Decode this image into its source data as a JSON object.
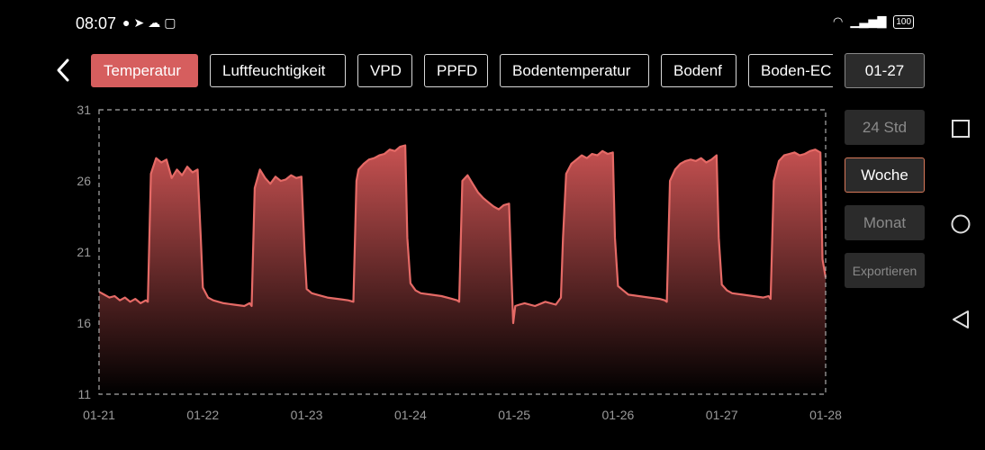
{
  "status_bar": {
    "time": "08:07",
    "battery": "100"
  },
  "tabs": [
    "Temperatur",
    "Luftfeuchtigkeit",
    "VPD",
    "PPFD",
    "Bodentemperatur",
    "Bodenf",
    "Boden-EC"
  ],
  "active_tab": "Temperatur",
  "date_button": "01-27",
  "range_buttons": {
    "day": "24 Std",
    "week": "Woche",
    "month": "Monat",
    "export": "Exportieren"
  },
  "selected_range": "Woche",
  "icons": {
    "back": "chevron-left-icon",
    "square": "recent-apps-icon",
    "circle": "home-icon",
    "triangle": "back-nav-icon"
  },
  "colors": {
    "accent": "#d65e5e",
    "line": "#e56a66",
    "fill_top": "#c85252",
    "fill_bottom": "#000000"
  },
  "chart_data": {
    "type": "area",
    "title": "",
    "xlabel": "",
    "ylabel": "",
    "ylim": [
      11,
      31
    ],
    "yticks": [
      "31",
      "26",
      "21",
      "16",
      "11"
    ],
    "xticks": [
      "01-21",
      "01-22",
      "01-23",
      "01-24",
      "01-25",
      "01-26",
      "01-27",
      "01-28"
    ],
    "xlim": [
      0,
      7
    ],
    "grid": false,
    "border": "dashed",
    "series": [
      {
        "x": [
          0,
          0.05,
          0.1,
          0.15,
          0.2,
          0.25,
          0.3,
          0.35,
          0.4,
          0.45,
          0.47,
          0.5,
          0.55,
          0.6,
          0.65,
          0.7,
          0.75,
          0.8,
          0.85,
          0.9,
          0.95,
          0.98,
          1.0,
          1.05,
          1.1,
          1.2,
          1.3,
          1.4,
          1.45,
          1.47,
          1.5,
          1.55,
          1.6,
          1.65,
          1.7,
          1.75,
          1.8,
          1.85,
          1.9,
          1.95,
          1.98,
          2.0,
          2.05,
          2.1,
          2.2,
          2.3,
          2.4,
          2.45,
          2.48,
          2.5,
          2.55,
          2.6,
          2.65,
          2.7,
          2.75,
          2.8,
          2.85,
          2.9,
          2.95,
          2.97,
          3.0,
          3.05,
          3.1,
          3.2,
          3.3,
          3.4,
          3.45,
          3.47,
          3.5,
          3.55,
          3.6,
          3.65,
          3.7,
          3.75,
          3.8,
          3.85,
          3.9,
          3.95,
          3.97,
          3.99,
          4.01,
          4.05,
          4.1,
          4.2,
          4.3,
          4.4,
          4.45,
          4.47,
          4.5,
          4.55,
          4.6,
          4.65,
          4.7,
          4.75,
          4.8,
          4.85,
          4.9,
          4.95,
          4.97,
          5.0,
          5.05,
          5.1,
          5.2,
          5.3,
          5.4,
          5.45,
          5.47,
          5.5,
          5.55,
          5.6,
          5.65,
          5.7,
          5.75,
          5.8,
          5.85,
          5.9,
          5.95,
          5.97,
          6.0,
          6.05,
          6.1,
          6.2,
          6.3,
          6.4,
          6.45,
          6.47,
          6.5,
          6.55,
          6.6,
          6.65,
          6.7,
          6.75,
          6.8,
          6.85,
          6.9,
          6.95,
          6.97,
          7.0
        ],
        "y": [
          18.2,
          18.0,
          17.8,
          17.9,
          17.6,
          17.8,
          17.5,
          17.7,
          17.4,
          17.6,
          17.5,
          26.5,
          27.6,
          27.3,
          27.5,
          26.2,
          26.8,
          26.4,
          27.0,
          26.6,
          26.8,
          22.0,
          18.5,
          17.8,
          17.6,
          17.4,
          17.3,
          17.2,
          17.4,
          17.2,
          25.5,
          26.8,
          26.2,
          25.8,
          26.3,
          26.0,
          26.1,
          26.4,
          26.2,
          26.3,
          21.0,
          18.4,
          18.1,
          18.0,
          17.8,
          17.7,
          17.6,
          17.5,
          26.0,
          26.8,
          27.2,
          27.5,
          27.6,
          27.8,
          27.9,
          28.2,
          28.1,
          28.4,
          28.5,
          22.0,
          18.8,
          18.3,
          18.1,
          18.0,
          17.9,
          17.7,
          17.6,
          17.5,
          26.0,
          26.4,
          25.8,
          25.2,
          24.8,
          24.5,
          24.2,
          24.0,
          24.3,
          24.4,
          20.0,
          16.0,
          17.2,
          17.3,
          17.4,
          17.2,
          17.5,
          17.3,
          17.8,
          22.0,
          26.5,
          27.2,
          27.5,
          27.8,
          27.6,
          27.9,
          27.8,
          28.1,
          27.9,
          28.0,
          22.0,
          18.6,
          18.3,
          18.0,
          17.9,
          17.8,
          17.7,
          17.6,
          17.5,
          26.0,
          26.8,
          27.2,
          27.4,
          27.5,
          27.4,
          27.6,
          27.3,
          27.5,
          27.8,
          22.0,
          18.7,
          18.3,
          18.1,
          18.0,
          17.9,
          17.8,
          17.9,
          17.7,
          26.0,
          27.4,
          27.8,
          27.9,
          28.0,
          27.8,
          27.9,
          28.1,
          28.2,
          28.0,
          20.5,
          19.2
        ]
      }
    ]
  }
}
